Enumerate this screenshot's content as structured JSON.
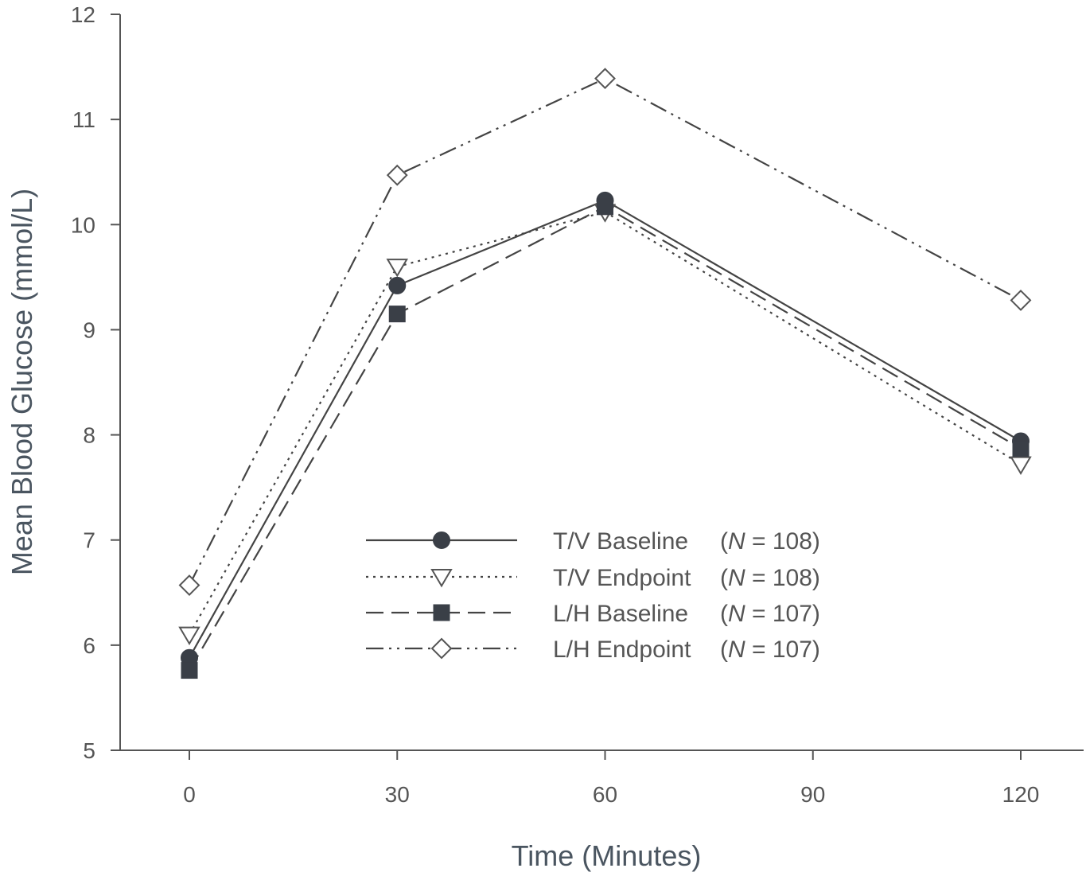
{
  "chart_data": {
    "type": "line",
    "title": "",
    "xlabel": "Time (Minutes)",
    "ylabel": "Mean Blood Glucose (mmol/L)",
    "x": [
      0,
      30,
      60,
      120
    ],
    "xlim": [
      0,
      120
    ],
    "ylim": [
      5,
      12
    ],
    "xticks": [
      "0",
      "30",
      "60",
      "90",
      "120"
    ],
    "yticks": [
      "5",
      "6",
      "7",
      "8",
      "9",
      "10",
      "11",
      "12"
    ],
    "grid": false,
    "legend_position": "center",
    "series": [
      {
        "name": "T/V Baseline",
        "n_label": "(N = 108)",
        "n_prefix": "(",
        "n_italic": "N",
        "n_suffix": " = 108)",
        "marker": "filled-circle",
        "line": "solid",
        "values": [
          5.88,
          9.42,
          10.23,
          7.94
        ]
      },
      {
        "name": "T/V Endpoint",
        "n_label": "(N = 108)",
        "n_prefix": "(",
        "n_italic": "N",
        "n_suffix": " = 108)",
        "marker": "open-triangle-down",
        "line": "dotted",
        "values": [
          6.1,
          9.6,
          10.12,
          7.72
        ]
      },
      {
        "name": "L/H Baseline",
        "n_label": "(N = 107)",
        "n_prefix": "(",
        "n_italic": "N",
        "n_suffix": " = 107)",
        "marker": "filled-square",
        "line": "dashed",
        "values": [
          5.76,
          9.15,
          10.17,
          7.87
        ]
      },
      {
        "name": "L/H Endpoint",
        "n_label": "(N = 107)",
        "n_prefix": "(",
        "n_italic": "N",
        "n_suffix": " = 107)",
        "marker": "open-diamond",
        "line": "dash-dot-dot",
        "values": [
          6.57,
          10.47,
          11.39,
          9.28
        ]
      }
    ],
    "colors": {
      "axis": "#555555",
      "series": "#444444",
      "axis_title": "#4a5560"
    }
  }
}
